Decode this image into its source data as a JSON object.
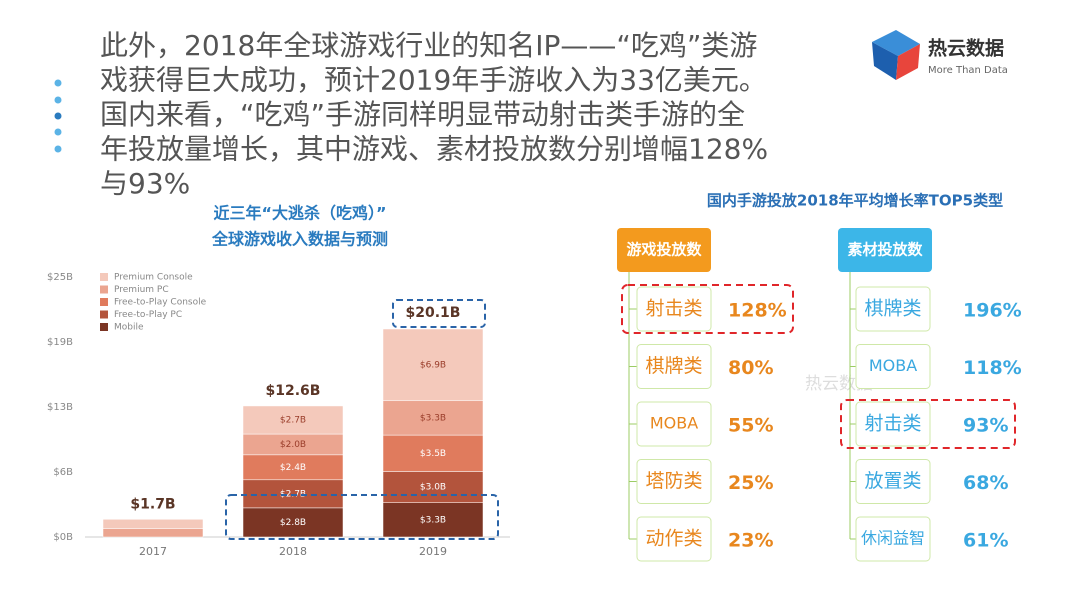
{
  "header": {
    "lines": [
      "此外，2018年全球游戏行业的知名IP——“吃鸡”类游",
      "戏获得巨大成功，预计2019年手游收入为33亿美元。",
      "国内来看，“吃鸡”手游同样明显带动射击类手游的全",
      "年投放量增长，其中游戏、素材投放数分别增幅128%",
      "与93%"
    ]
  },
  "logo": {
    "name": "热云数据",
    "tagline": "More Than Data"
  },
  "chart_data": {
    "type": "stacked_bar",
    "title": [
      "近三年“大逃杀（吃鸡）”",
      "全球游戏收入数据与预测"
    ],
    "categories": [
      "2017",
      "2018",
      "2019"
    ],
    "series": [
      {
        "name": "Premium Console",
        "color": "#f4c9bb",
        "values": [
          0.9,
          2.7,
          6.9
        ],
        "value_labels": [
          null,
          "$2.7B",
          "$6.9B"
        ]
      },
      {
        "name": "Premium PC",
        "color": "#eba590",
        "values": [
          0.8,
          2.0,
          3.3
        ],
        "value_labels": [
          null,
          "$2.0B",
          "$3.3B"
        ]
      },
      {
        "name": "Free-to-Play Console",
        "color": "#e07b5d",
        "values": [
          null,
          2.4,
          3.5
        ],
        "value_labels": [
          null,
          "$2.4B",
          "$3.5B"
        ]
      },
      {
        "name": "Free-to-Play PC",
        "color": "#b3543c",
        "values": [
          null,
          2.7,
          3.0
        ],
        "value_labels": [
          null,
          "$2.7B",
          "$3.0B"
        ]
      },
      {
        "name": "Mobile",
        "color": "#7b3524",
        "values": [
          null,
          2.8,
          3.3
        ],
        "value_labels": [
          null,
          "$2.8B",
          "$3.3B"
        ]
      }
    ],
    "totals": {
      "values": [
        1.7,
        12.6,
        20.1
      ],
      "value_labels": [
        "$1.7B",
        "$12.6B",
        "$20.1B"
      ]
    },
    "ylim": [
      0,
      25
    ],
    "yticks": [
      {
        "value": 0,
        "label": "$0B"
      },
      {
        "value": 6.25,
        "label": "$6B"
      },
      {
        "value": 12.5,
        "label": "$13B"
      },
      {
        "value": 18.75,
        "label": "$19B"
      },
      {
        "value": 25,
        "label": "$25B"
      }
    ],
    "grid": false,
    "legend": "top-left"
  },
  "diagram": {
    "title": "国内手游投放2018年平均增长率TOP5类型",
    "groups": [
      {
        "header": "游戏投放数",
        "highlight": 0,
        "items": [
          {
            "label": "射击类",
            "value": "128%"
          },
          {
            "label": "棋牌类",
            "value": "80%"
          },
          {
            "label": "MOBA",
            "value": "55%"
          },
          {
            "label": "塔防类",
            "value": "25%"
          },
          {
            "label": "动作类",
            "value": "23%"
          }
        ]
      },
      {
        "header": "素材投放数",
        "highlight": 2,
        "items": [
          {
            "label": "棋牌类",
            "value": "196%"
          },
          {
            "label": "MOBA",
            "value": "118%"
          },
          {
            "label": "射击类",
            "value": "93%"
          },
          {
            "label": "放置类",
            "value": "68%"
          },
          {
            "label": "休闲益智",
            "value": "61%"
          }
        ]
      }
    ]
  }
}
